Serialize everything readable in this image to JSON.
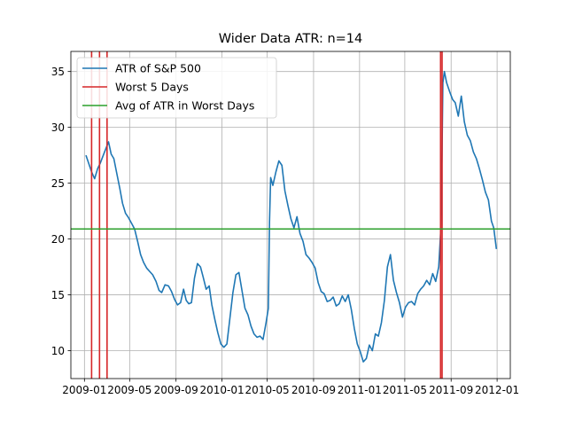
{
  "chart_data": {
    "type": "line",
    "title": "Wider Data ATR: n=14",
    "xlabel": "",
    "ylabel": "",
    "x_ticks": [
      "2009-01",
      "2009-05",
      "2009-09",
      "2010-01",
      "2010-05",
      "2010-09",
      "2011-01",
      "2011-05",
      "2011-09",
      "2012-01"
    ],
    "y_ticks": [
      10,
      15,
      20,
      25,
      30,
      35
    ],
    "xlim": [
      "2008-11-26",
      "2012-02-05"
    ],
    "ylim": [
      7.5,
      36.8
    ],
    "grid": true,
    "legend_position": "top-left",
    "colors": {
      "atr": "#1f77b4",
      "worst": "#d62728",
      "avg": "#2ca02c"
    },
    "series": [
      {
        "name": "ATR of S&P 500",
        "kind": "line",
        "points": [
          [
            "2009-01-05",
            27.5
          ],
          [
            "2009-01-12",
            26.8
          ],
          [
            "2009-01-20",
            26.0
          ],
          [
            "2009-01-28",
            25.4
          ],
          [
            "2009-02-05",
            26.3
          ],
          [
            "2009-02-12",
            26.8
          ],
          [
            "2009-02-20",
            27.5
          ],
          [
            "2009-02-28",
            28.2
          ],
          [
            "2009-03-06",
            28.7
          ],
          [
            "2009-03-13",
            27.6
          ],
          [
            "2009-03-20",
            27.2
          ],
          [
            "2009-03-27",
            26.0
          ],
          [
            "2009-04-05",
            24.5
          ],
          [
            "2009-04-12",
            23.2
          ],
          [
            "2009-04-20",
            22.3
          ],
          [
            "2009-04-28",
            21.9
          ],
          [
            "2009-05-06",
            21.4
          ],
          [
            "2009-05-14",
            20.9
          ],
          [
            "2009-05-22",
            19.8
          ],
          [
            "2009-05-30",
            18.6
          ],
          [
            "2009-06-07",
            17.9
          ],
          [
            "2009-06-15",
            17.4
          ],
          [
            "2009-06-23",
            17.1
          ],
          [
            "2009-07-01",
            16.8
          ],
          [
            "2009-07-10",
            16.2
          ],
          [
            "2009-07-18",
            15.4
          ],
          [
            "2009-07-25",
            15.2
          ],
          [
            "2009-08-03",
            15.9
          ],
          [
            "2009-08-12",
            15.8
          ],
          [
            "2009-08-20",
            15.3
          ],
          [
            "2009-08-28",
            14.6
          ],
          [
            "2009-09-05",
            14.1
          ],
          [
            "2009-09-13",
            14.3
          ],
          [
            "2009-09-21",
            15.5
          ],
          [
            "2009-09-28",
            14.5
          ],
          [
            "2009-10-05",
            14.2
          ],
          [
            "2009-10-12",
            14.3
          ],
          [
            "2009-10-20",
            16.5
          ],
          [
            "2009-10-28",
            17.8
          ],
          [
            "2009-11-05",
            17.5
          ],
          [
            "2009-11-12",
            16.6
          ],
          [
            "2009-11-20",
            15.5
          ],
          [
            "2009-11-28",
            15.8
          ],
          [
            "2009-12-05",
            14.1
          ],
          [
            "2009-12-13",
            12.8
          ],
          [
            "2009-12-21",
            11.6
          ],
          [
            "2009-12-29",
            10.6
          ],
          [
            "2010-01-06",
            10.3
          ],
          [
            "2010-01-14",
            10.6
          ],
          [
            "2010-01-22",
            12.9
          ],
          [
            "2010-01-30",
            15.2
          ],
          [
            "2010-02-07",
            16.8
          ],
          [
            "2010-02-15",
            17.0
          ],
          [
            "2010-02-23",
            15.4
          ],
          [
            "2010-03-03",
            13.8
          ],
          [
            "2010-03-11",
            13.2
          ],
          [
            "2010-03-19",
            12.2
          ],
          [
            "2010-03-27",
            11.5
          ],
          [
            "2010-04-04",
            11.2
          ],
          [
            "2010-04-12",
            11.3
          ],
          [
            "2010-04-20",
            11.0
          ],
          [
            "2010-04-28",
            12.5
          ],
          [
            "2010-05-04",
            13.8
          ],
          [
            "2010-05-07",
            21.5
          ],
          [
            "2010-05-10",
            25.5
          ],
          [
            "2010-05-16",
            24.8
          ],
          [
            "2010-05-24",
            26.0
          ],
          [
            "2010-06-01",
            27.0
          ],
          [
            "2010-06-09",
            26.6
          ],
          [
            "2010-06-17",
            24.3
          ],
          [
            "2010-06-25",
            23.0
          ],
          [
            "2010-07-03",
            21.8
          ],
          [
            "2010-07-11",
            21.0
          ],
          [
            "2010-07-19",
            22.0
          ],
          [
            "2010-07-27",
            20.5
          ],
          [
            "2010-08-04",
            19.8
          ],
          [
            "2010-08-12",
            18.6
          ],
          [
            "2010-08-20",
            18.3
          ],
          [
            "2010-08-28",
            17.9
          ],
          [
            "2010-09-05",
            17.4
          ],
          [
            "2010-09-13",
            16.1
          ],
          [
            "2010-09-21",
            15.3
          ],
          [
            "2010-09-29",
            15.1
          ],
          [
            "2010-10-07",
            14.4
          ],
          [
            "2010-10-15",
            14.5
          ],
          [
            "2010-10-23",
            14.8
          ],
          [
            "2010-10-31",
            14.0
          ],
          [
            "2010-11-08",
            14.2
          ],
          [
            "2010-11-16",
            14.9
          ],
          [
            "2010-11-24",
            14.4
          ],
          [
            "2010-12-02",
            15.0
          ],
          [
            "2010-12-10",
            13.7
          ],
          [
            "2010-12-18",
            12.0
          ],
          [
            "2010-12-26",
            10.6
          ],
          [
            "2011-01-03",
            9.9
          ],
          [
            "2011-01-11",
            9.0
          ],
          [
            "2011-01-19",
            9.3
          ],
          [
            "2011-01-27",
            10.5
          ],
          [
            "2011-02-04",
            10.0
          ],
          [
            "2011-02-12",
            11.5
          ],
          [
            "2011-02-20",
            11.3
          ],
          [
            "2011-02-28",
            12.5
          ],
          [
            "2011-03-08",
            14.5
          ],
          [
            "2011-03-16",
            17.5
          ],
          [
            "2011-03-24",
            18.6
          ],
          [
            "2011-04-01",
            16.3
          ],
          [
            "2011-04-09",
            15.2
          ],
          [
            "2011-04-17",
            14.3
          ],
          [
            "2011-04-25",
            13.0
          ],
          [
            "2011-05-03",
            13.9
          ],
          [
            "2011-05-11",
            14.3
          ],
          [
            "2011-05-19",
            14.4
          ],
          [
            "2011-05-27",
            14.1
          ],
          [
            "2011-06-04",
            15.1
          ],
          [
            "2011-06-12",
            15.5
          ],
          [
            "2011-06-20",
            15.8
          ],
          [
            "2011-06-28",
            16.3
          ],
          [
            "2011-07-06",
            15.9
          ],
          [
            "2011-07-14",
            16.9
          ],
          [
            "2011-07-22",
            16.2
          ],
          [
            "2011-07-30",
            17.5
          ],
          [
            "2011-08-04",
            20.5
          ],
          [
            "2011-08-08",
            28.0
          ],
          [
            "2011-08-10",
            34.0
          ],
          [
            "2011-08-14",
            35.0
          ],
          [
            "2011-08-20",
            34.0
          ],
          [
            "2011-08-28",
            33.2
          ],
          [
            "2011-09-05",
            32.5
          ],
          [
            "2011-09-12",
            32.2
          ],
          [
            "2011-09-20",
            31.0
          ],
          [
            "2011-09-28",
            32.8
          ],
          [
            "2011-10-06",
            30.5
          ],
          [
            "2011-10-14",
            29.3
          ],
          [
            "2011-10-22",
            28.8
          ],
          [
            "2011-10-30",
            27.8
          ],
          [
            "2011-11-07",
            27.2
          ],
          [
            "2011-11-15",
            26.3
          ],
          [
            "2011-11-23",
            25.3
          ],
          [
            "2011-12-01",
            24.2
          ],
          [
            "2011-12-09",
            23.5
          ],
          [
            "2011-12-17",
            21.6
          ],
          [
            "2011-12-23",
            21.0
          ],
          [
            "2011-12-30",
            19.1
          ]
        ]
      },
      {
        "name": "Worst 5 Days",
        "kind": "vlines",
        "x": [
          "2009-01-20",
          "2009-02-10",
          "2009-03-02",
          "2011-08-04",
          "2011-08-08"
        ]
      },
      {
        "name": "Avg of ATR in Worst Days",
        "kind": "hline",
        "y": 20.9
      }
    ]
  }
}
